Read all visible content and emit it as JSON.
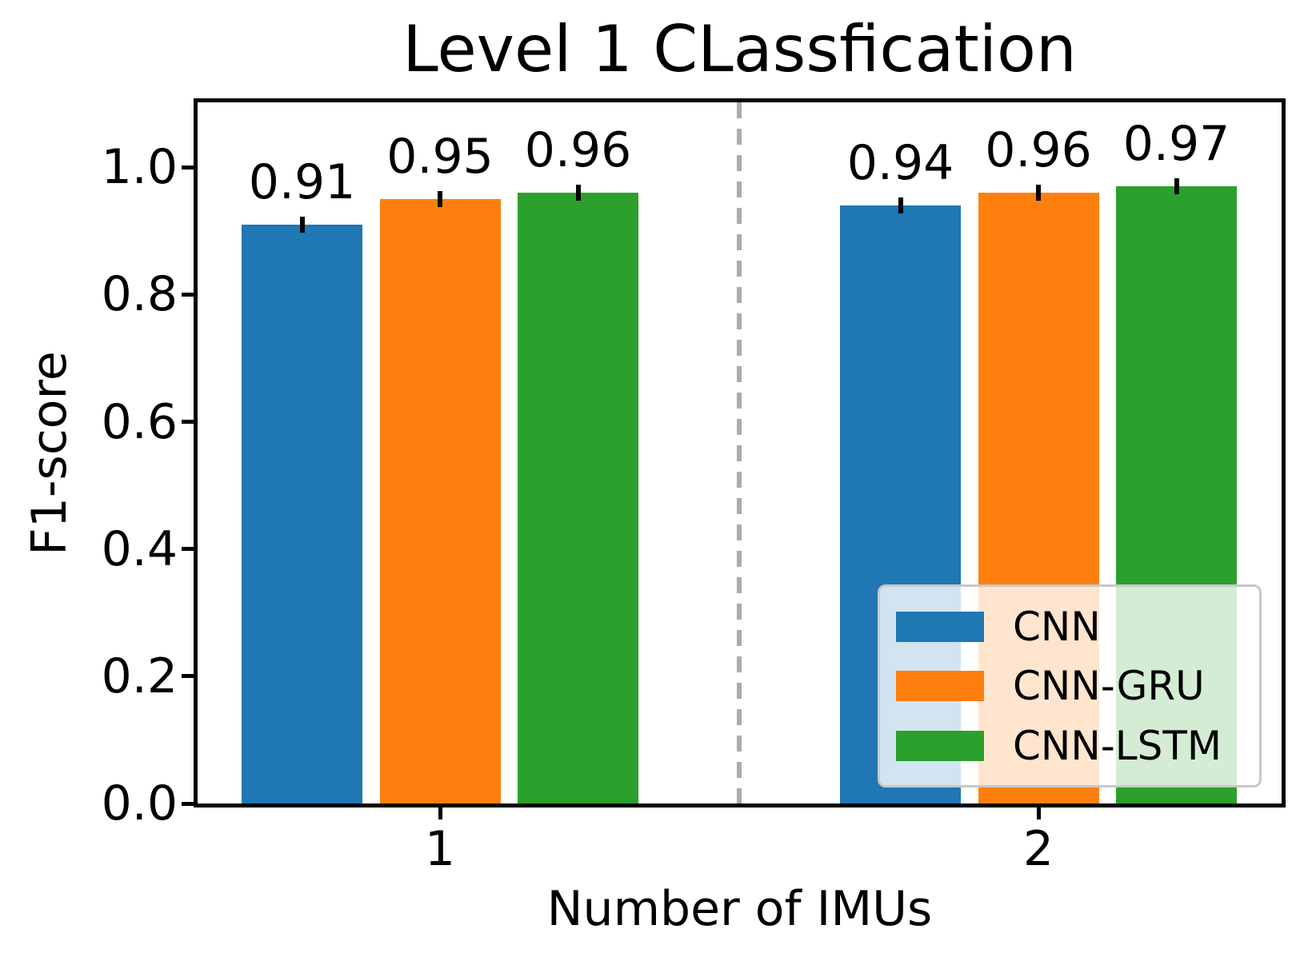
{
  "chart_data": {
    "type": "bar",
    "title": "Level 1 CLassfication",
    "xlabel": "Number of IMUs",
    "ylabel": "F1-score",
    "categories": [
      "1",
      "2"
    ],
    "series": [
      {
        "name": "CNN",
        "color": "#1f77b4",
        "values": [
          0.91,
          0.94
        ],
        "bar_labels": [
          "0.91",
          "0.94"
        ]
      },
      {
        "name": "CNN-GRU",
        "color": "#ff7f0e",
        "values": [
          0.95,
          0.96
        ],
        "bar_labels": [
          "0.95",
          "0.96"
        ]
      },
      {
        "name": "CNN-LSTM",
        "color": "#2ca02c",
        "values": [
          0.96,
          0.97
        ],
        "bar_labels": [
          "0.96",
          "0.97"
        ]
      }
    ],
    "error_bars": {
      "half_value": 0.012,
      "color": "#000000"
    },
    "ylim": [
      0,
      1.102
    ],
    "yticks": [
      "0.0",
      "0.2",
      "0.4",
      "0.6",
      "0.8",
      "1.0"
    ],
    "grid": false,
    "legend": {
      "position": "lower right",
      "entries": [
        "CNN",
        "CNN-GRU",
        "CNN-LSTM"
      ]
    },
    "separator_line": {
      "between_categories": true,
      "style": "dashed",
      "color": "#ababab"
    },
    "axis_color": "#000000"
  }
}
